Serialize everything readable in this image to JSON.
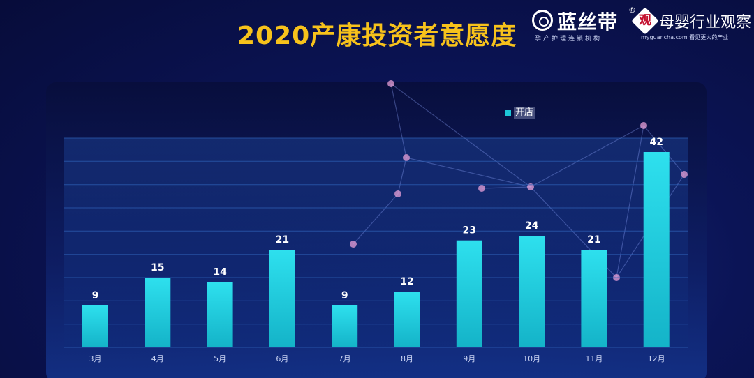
{
  "header": {
    "title": "2020产康投资者意愿度"
  },
  "branding": {
    "logo1_name": "蓝丝带",
    "logo1_reg": "®",
    "logo1_sub": "孕产护理连锁机构",
    "logo2_mark": "观",
    "logo2_name": "母婴行业观察",
    "logo2_sub": "myguancha.com 看见更大的产业"
  },
  "colors": {
    "title": "#f7c21b",
    "bar": "#1dc7d8",
    "bar_top": "#2ee0ee",
    "grid": "#2f63b8",
    "label": "#ffffff",
    "tick": "#c9d3f2"
  },
  "chart_data": {
    "type": "bar",
    "categories": [
      "3月",
      "4月",
      "5月",
      "6月",
      "7月",
      "8月",
      "9月",
      "10月",
      "11月",
      "12月"
    ],
    "series": [
      {
        "name": "开店",
        "values": [
          9,
          15,
          14,
          21,
          9,
          12,
          23,
          24,
          21,
          42
        ]
      }
    ],
    "ylim": [
      0,
      45
    ],
    "grid": true,
    "legend": "top-right"
  }
}
